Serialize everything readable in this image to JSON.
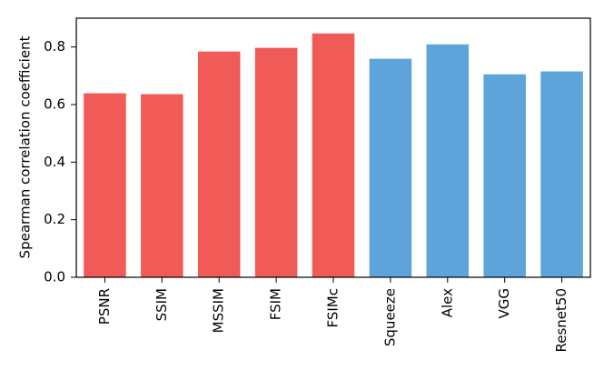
{
  "chart_data": {
    "type": "bar",
    "y_label": "Spearman correlation coefficient",
    "categories": [
      "PSNR",
      "SSIM",
      "MSSIM",
      "FSIM",
      "FSIMc",
      "Squeeze",
      "Alex",
      "VGG",
      "Resnet50"
    ],
    "values": [
      0.639,
      0.636,
      0.784,
      0.797,
      0.847,
      0.759,
      0.809,
      0.705,
      0.715
    ],
    "colors": [
      "#f05a57",
      "#f05a57",
      "#f05a57",
      "#f05a57",
      "#f05a57",
      "#5ca4da",
      "#5ca4da",
      "#5ca4da",
      "#5ca4da"
    ],
    "ylim": [
      0,
      0.9
    ],
    "yticks": [
      {
        "value": 0,
        "label": "0.0"
      },
      0.2,
      0.4,
      0.6,
      0.8
    ],
    "grid": false
  }
}
